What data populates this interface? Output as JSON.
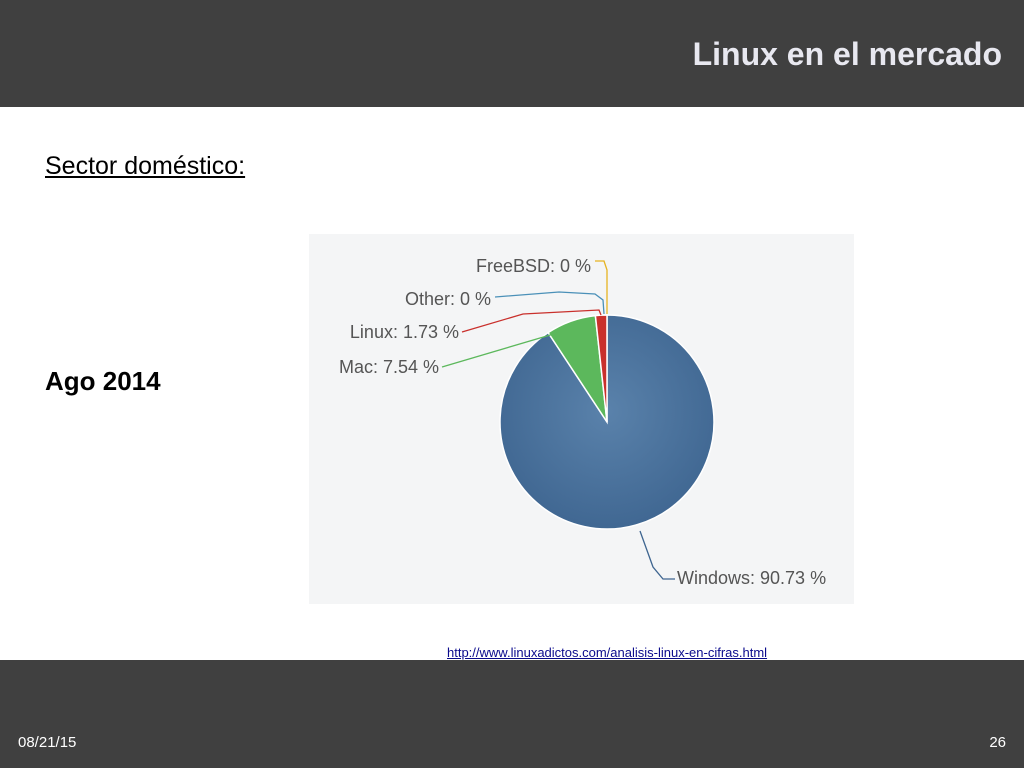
{
  "slide": {
    "title": "Linux en el mercado",
    "section_heading": "Sector doméstico:",
    "date_label": "Ago 2014",
    "source_link": "http://www.linuxadictos.com/analisis-linux-en-cifras.html"
  },
  "footer": {
    "date": "08/21/15",
    "page_number": "26"
  },
  "colors": {
    "bar": "#404040",
    "windows": "#3e6590",
    "mac": "#5cb85c",
    "linux": "#c9302c",
    "other": "#4a90b8",
    "freebsd": "#e6b422"
  },
  "chart_data": {
    "type": "pie",
    "title": "",
    "slices": [
      {
        "label": "Windows: 90.73 %",
        "name": "Windows",
        "value": 90.73,
        "color": "#3e6590",
        "slug": "windows"
      },
      {
        "label": "Mac: 7.54 %",
        "name": "Mac",
        "value": 7.54,
        "color": "#5cb85c",
        "slug": "mac"
      },
      {
        "label": "Linux: 1.73 %",
        "name": "Linux",
        "value": 1.73,
        "color": "#c9302c",
        "slug": "linux"
      },
      {
        "label": "Other: 0 %",
        "name": "Other",
        "value": 0,
        "color": "#4a90b8",
        "slug": "other"
      },
      {
        "label": "FreeBSD: 0 %",
        "name": "FreeBSD",
        "value": 0,
        "color": "#e6b422",
        "slug": "freebsd"
      }
    ],
    "start": "12 o'clock",
    "direction": "clockwise",
    "legend": "callout labels"
  }
}
